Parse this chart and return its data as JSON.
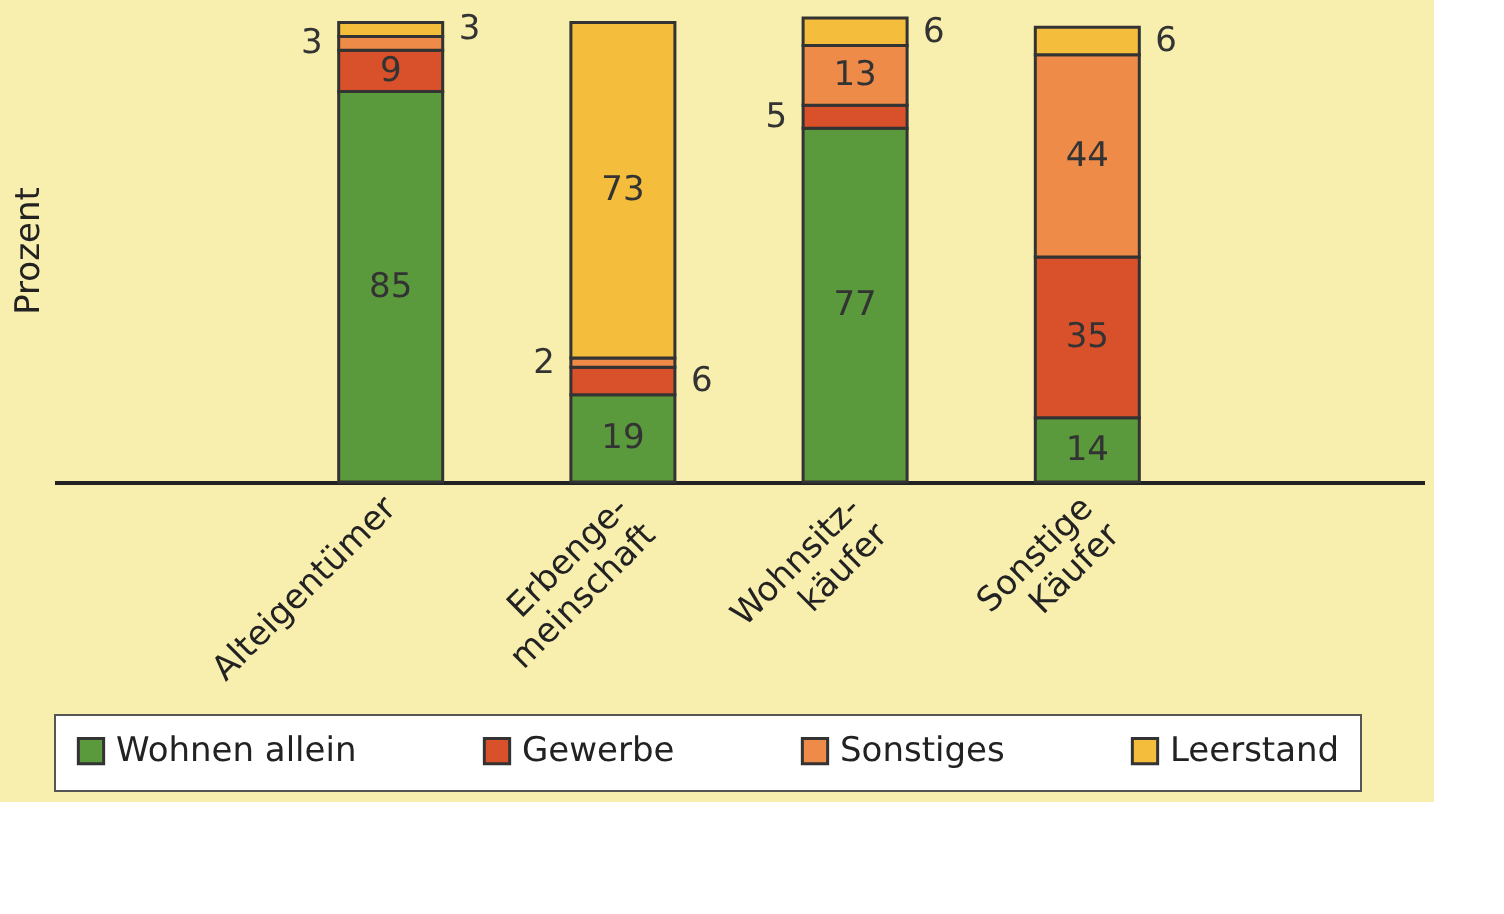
{
  "chart_data": {
    "type": "bar",
    "stacked": true,
    "ylabel": "Prozent",
    "categories": [
      "Alteigentümer",
      "Erbenge-\nmeinschaft",
      "Wohnsitz-\nkäufer",
      "Sonstige\nKäufer"
    ],
    "series": [
      {
        "name": "Wohnen allein",
        "color": "#5b9a3c",
        "values": [
          85,
          19,
          77,
          14
        ]
      },
      {
        "name": "Gewerbe",
        "color": "#d9512b",
        "values": [
          9,
          6,
          5,
          35
        ]
      },
      {
        "name": "Sonstiges",
        "color": "#ef8b48",
        "values": [
          3,
          2,
          13,
          44
        ]
      },
      {
        "name": "Leerstand",
        "color": "#f5bd3c",
        "values": [
          3,
          73,
          6,
          6
        ]
      }
    ],
    "data_labels": true,
    "legend": "bottom",
    "grid": false
  }
}
